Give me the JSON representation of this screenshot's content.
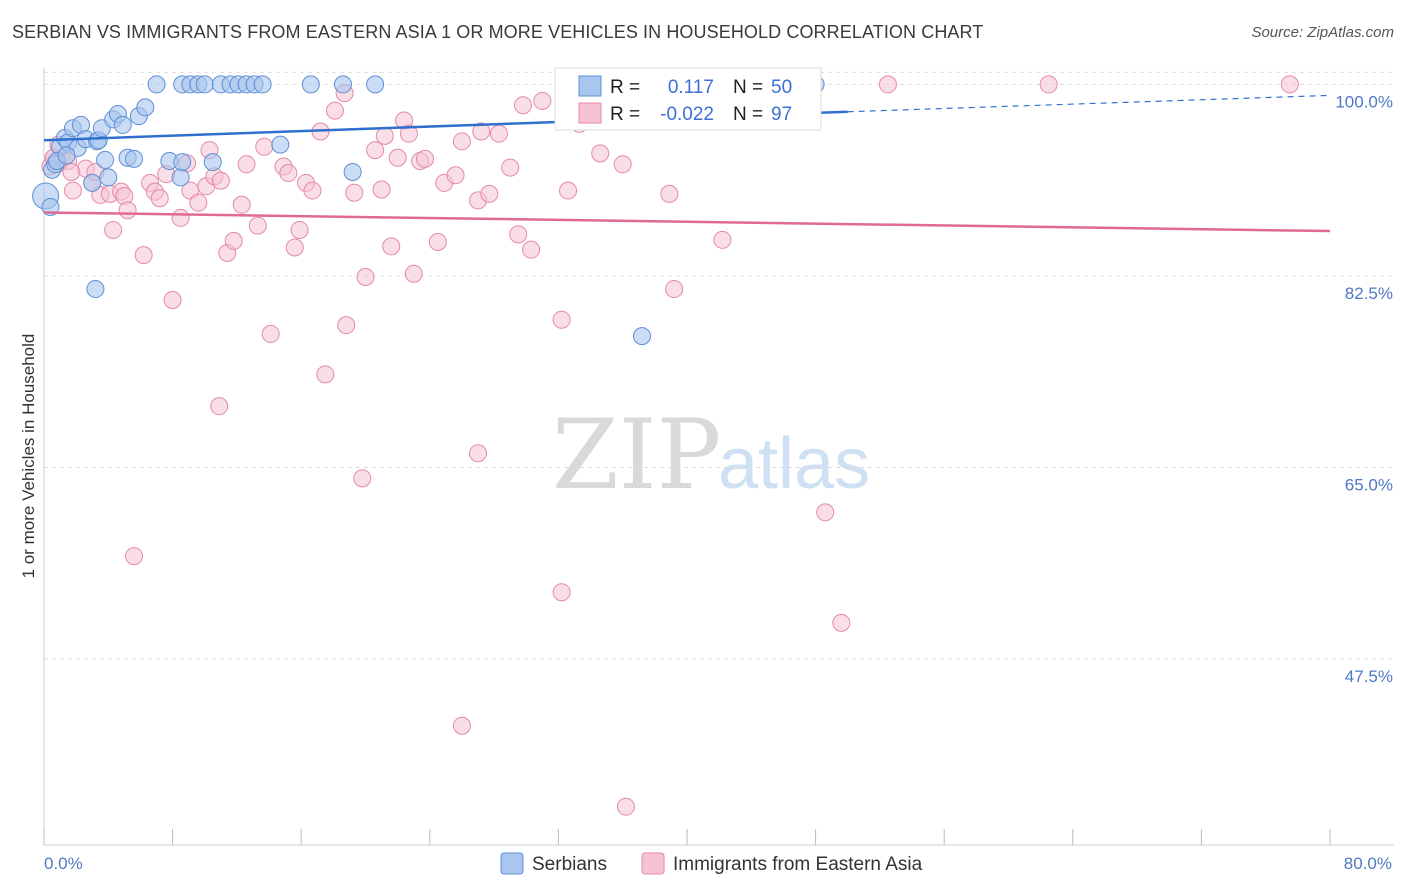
{
  "header": {
    "title": "SERBIAN VS IMMIGRANTS FROM EASTERN ASIA 1 OR MORE VEHICLES IN HOUSEHOLD CORRELATION CHART",
    "source": "Source: ZipAtlas.com"
  },
  "watermark": {
    "zip": "ZIP",
    "atlas": "atlas"
  },
  "legend_box": {
    "rows": [
      {
        "r_label": "R =",
        "r_value": "0.117",
        "n_label": "N =",
        "n_value": "50"
      },
      {
        "r_label": "R =",
        "r_value": "-0.022",
        "n_label": "N =",
        "n_value": "97"
      }
    ]
  },
  "bottom_legend": {
    "serbians": "Serbians",
    "immigrants": "Immigrants from Eastern Asia"
  },
  "colors": {
    "blue_fill": "#a9c6ee",
    "blue_stroke": "#5f8fd6",
    "blue_line": "#2e6fd0",
    "pink_fill": "#f6c3d3",
    "pink_stroke": "#e48aa7",
    "pink_line": "#e06a95",
    "grid": "#dddddd",
    "axis_text": "#4f79c4"
  },
  "chart_data": {
    "type": "scatter",
    "title": "SERBIAN VS IMMIGRANTS FROM EASTERN ASIA 1 OR MORE VEHICLES IN HOUSEHOLD CORRELATION CHART",
    "xlabel": "",
    "ylabel": "1 or more Vehicles in Household",
    "xlim": [
      0,
      80
    ],
    "ylim": [
      30.5,
      101.5
    ],
    "x_tick_labels": [
      "0.0%",
      "80.0%"
    ],
    "y_ticks": [
      100.0,
      82.5,
      65.0,
      47.5
    ],
    "y_tick_labels": [
      "100.0%",
      "82.5%",
      "65.0%",
      "47.5%"
    ],
    "grid": true,
    "legend_position": "top-center",
    "series": [
      {
        "name": "Serbians",
        "R": 0.117,
        "N": 50,
        "trend": {
          "x": [
            0,
            50
          ],
          "y": [
            94.9,
            97.5
          ],
          "dashed_to": {
            "x": [
              50,
              80
            ],
            "y": [
              97.5,
              99.0
            ]
          }
        },
        "points": [
          [
            0.1,
            89.8
          ],
          [
            0.4,
            88.8
          ],
          [
            0.5,
            92.2
          ],
          [
            0.7,
            92.7
          ],
          [
            1.0,
            94.3
          ],
          [
            1.3,
            95.1
          ],
          [
            1.5,
            94.7
          ],
          [
            1.8,
            96.0
          ],
          [
            2.1,
            94.2
          ],
          [
            2.3,
            96.3
          ],
          [
            2.6,
            95.0
          ],
          [
            3.0,
            91.0
          ],
          [
            3.3,
            94.8
          ],
          [
            3.4,
            94.9
          ],
          [
            3.6,
            96.0
          ],
          [
            3.8,
            93.1
          ],
          [
            4.0,
            91.5
          ],
          [
            4.3,
            96.8
          ],
          [
            4.6,
            97.3
          ],
          [
            4.9,
            96.3
          ],
          [
            5.2,
            93.3
          ],
          [
            5.6,
            93.2
          ],
          [
            5.9,
            97.1
          ],
          [
            6.3,
            97.9
          ],
          [
            7.8,
            93.0
          ],
          [
            8.5,
            91.5
          ],
          [
            8.6,
            92.9
          ],
          [
            10.5,
            92.9
          ],
          [
            14.7,
            94.5
          ],
          [
            19.2,
            92.0
          ],
          [
            3.2,
            81.3
          ],
          [
            37.2,
            77.0
          ],
          [
            7.0,
            100.0
          ],
          [
            8.6,
            100.0
          ],
          [
            9.1,
            100.0
          ],
          [
            9.6,
            100.0
          ],
          [
            10.0,
            100.0
          ],
          [
            11.0,
            100.0
          ],
          [
            11.6,
            100.0
          ],
          [
            12.1,
            100.0
          ],
          [
            12.6,
            100.0
          ],
          [
            13.1,
            100.0
          ],
          [
            13.6,
            100.0
          ],
          [
            16.6,
            100.0
          ],
          [
            18.6,
            100.0
          ],
          [
            20.6,
            100.0
          ],
          [
            37.6,
            100.0
          ],
          [
            48.0,
            100.0
          ],
          [
            0.8,
            93.0
          ],
          [
            1.4,
            93.5
          ]
        ]
      },
      {
        "name": "Immigrants from Eastern Asia",
        "R": -0.022,
        "N": 97,
        "trend": {
          "x": [
            0,
            80
          ],
          "y": [
            88.3,
            86.6
          ]
        },
        "points": [
          [
            0.4,
            92.5
          ],
          [
            0.6,
            93.3
          ],
          [
            0.9,
            92.8
          ],
          [
            1.1,
            93.2
          ],
          [
            1.5,
            93.0
          ],
          [
            1.8,
            90.3
          ],
          [
            2.6,
            92.3
          ],
          [
            3.0,
            91.0
          ],
          [
            3.5,
            89.9
          ],
          [
            4.1,
            90.0
          ],
          [
            4.3,
            86.7
          ],
          [
            4.8,
            90.2
          ],
          [
            5.0,
            89.8
          ],
          [
            5.2,
            88.5
          ],
          [
            6.2,
            84.4
          ],
          [
            6.6,
            91.0
          ],
          [
            6.9,
            90.2
          ],
          [
            7.2,
            89.6
          ],
          [
            7.6,
            91.8
          ],
          [
            8.0,
            80.3
          ],
          [
            8.5,
            87.8
          ],
          [
            8.9,
            92.8
          ],
          [
            9.1,
            90.3
          ],
          [
            9.6,
            89.2
          ],
          [
            10.1,
            90.7
          ],
          [
            10.3,
            94.0
          ],
          [
            10.6,
            91.6
          ],
          [
            11.0,
            91.2
          ],
          [
            11.4,
            84.6
          ],
          [
            11.8,
            85.7
          ],
          [
            12.3,
            89.0
          ],
          [
            12.6,
            92.7
          ],
          [
            13.3,
            87.1
          ],
          [
            13.7,
            94.3
          ],
          [
            14.1,
            77.2
          ],
          [
            14.9,
            92.5
          ],
          [
            15.2,
            91.9
          ],
          [
            15.6,
            85.1
          ],
          [
            15.9,
            86.7
          ],
          [
            16.3,
            91.0
          ],
          [
            16.7,
            90.3
          ],
          [
            17.2,
            95.7
          ],
          [
            17.5,
            73.5
          ],
          [
            18.1,
            97.6
          ],
          [
            18.7,
            99.2
          ],
          [
            18.8,
            78.0
          ],
          [
            19.3,
            90.1
          ],
          [
            19.8,
            64.0
          ],
          [
            20.0,
            82.4
          ],
          [
            20.6,
            94.0
          ],
          [
            21.0,
            90.4
          ],
          [
            21.2,
            95.3
          ],
          [
            21.6,
            85.2
          ],
          [
            22.0,
            93.3
          ],
          [
            22.4,
            96.7
          ],
          [
            22.7,
            95.5
          ],
          [
            23.0,
            82.7
          ],
          [
            23.4,
            93.0
          ],
          [
            23.7,
            93.2
          ],
          [
            24.5,
            85.6
          ],
          [
            24.9,
            91.0
          ],
          [
            25.6,
            91.7
          ],
          [
            26.0,
            94.8
          ],
          [
            27.0,
            89.4
          ],
          [
            27.2,
            95.7
          ],
          [
            27.7,
            90.0
          ],
          [
            28.3,
            95.5
          ],
          [
            29.0,
            92.4
          ],
          [
            29.5,
            86.3
          ],
          [
            29.8,
            98.1
          ],
          [
            30.3,
            84.9
          ],
          [
            31.0,
            98.5
          ],
          [
            32.2,
            78.5
          ],
          [
            32.6,
            90.3
          ],
          [
            33.3,
            96.4
          ],
          [
            34.6,
            93.7
          ],
          [
            36.9,
            100.0
          ],
          [
            38.9,
            90.0
          ],
          [
            39.2,
            81.3
          ],
          [
            40.3,
            100.0
          ],
          [
            42.2,
            85.8
          ],
          [
            10.9,
            70.6
          ],
          [
            27.0,
            66.3
          ],
          [
            5.6,
            56.9
          ],
          [
            32.2,
            53.6
          ],
          [
            48.6,
            60.9
          ],
          [
            49.6,
            50.8
          ],
          [
            26.0,
            41.4
          ],
          [
            36.2,
            34.0
          ],
          [
            0.6,
            93.3
          ],
          [
            0.9,
            94.5
          ],
          [
            3.2,
            92.0
          ],
          [
            52.5,
            100.0
          ],
          [
            62.5,
            100.0
          ],
          [
            77.5,
            100.0
          ],
          [
            36.0,
            92.7
          ],
          [
            1.7,
            92.0
          ]
        ]
      }
    ]
  }
}
